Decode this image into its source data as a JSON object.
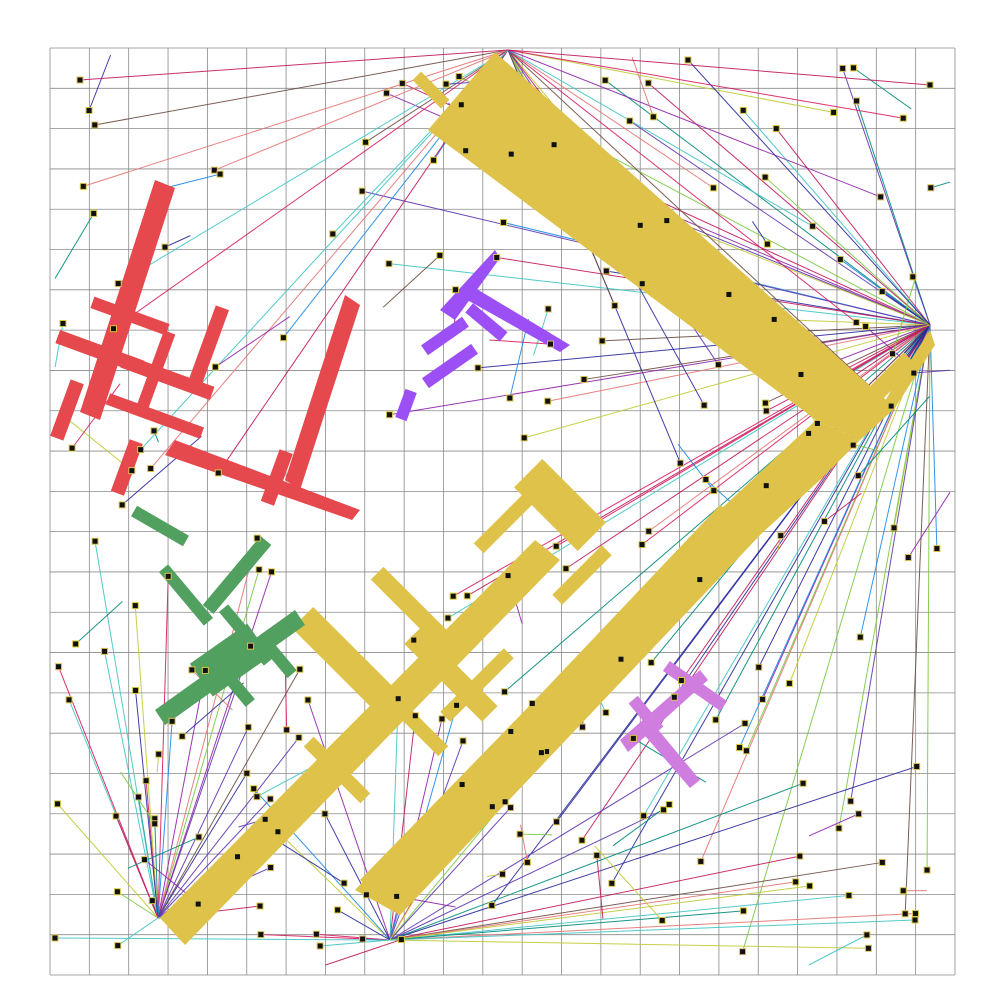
{
  "diagram": {
    "kind": "pcb-routing-layout",
    "background": "#ffffff",
    "grid": {
      "visible": true,
      "color": "#8a8a8a",
      "columns": 23,
      "rows": 23
    },
    "components": [
      {
        "id": "gold-main-board",
        "color": "#dfc24a"
      },
      {
        "id": "red-component",
        "color": "#e5484d"
      },
      {
        "id": "green-component",
        "color": "#52a060"
      },
      {
        "id": "violet-component",
        "color": "#9c4ff5"
      },
      {
        "id": "orchid-component",
        "color": "#cf7ee0"
      }
    ],
    "hubs": [
      {
        "id": "hub-right",
        "label": ""
      },
      {
        "id": "hub-top",
        "label": ""
      },
      {
        "id": "hub-bottom-left",
        "label": ""
      },
      {
        "id": "hub-bottom-center",
        "label": ""
      }
    ],
    "trace_palette": [
      "#2a2a9c",
      "#c2185b",
      "#7ac943",
      "#40c4c4",
      "#8e24aa",
      "#1e88e5",
      "#e57373",
      "#6d4c41",
      "#c0ca33",
      "#00897b",
      "#5e35b1",
      "#d81b60"
    ]
  }
}
